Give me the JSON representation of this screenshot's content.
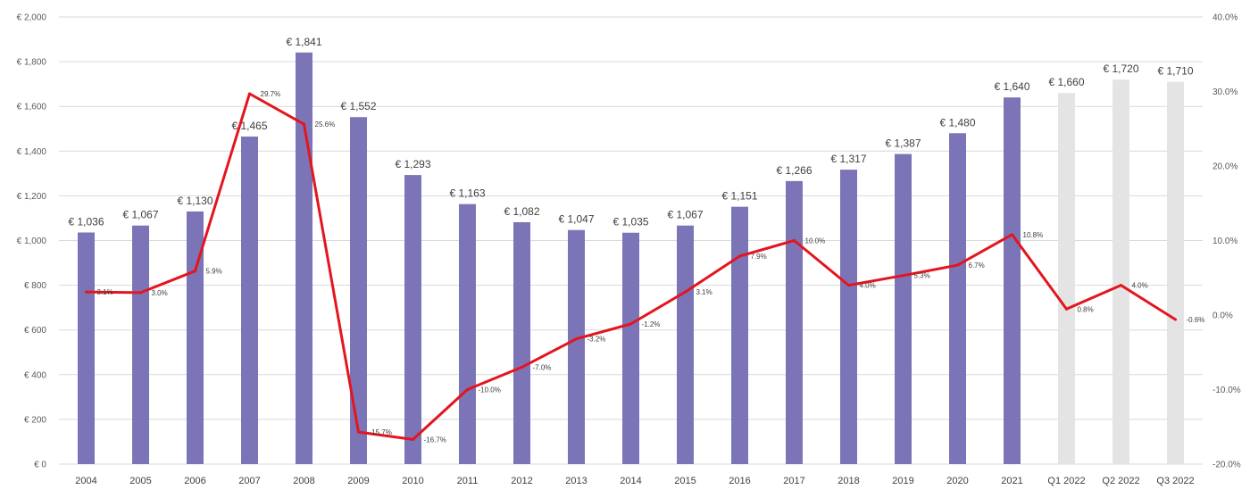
{
  "chart_data": {
    "type": "bar",
    "categories": [
      "2004",
      "2005",
      "2006",
      "2007",
      "2008",
      "2009",
      "2010",
      "2011",
      "2012",
      "2013",
      "2014",
      "2015",
      "2016",
      "2017",
      "2018",
      "2019",
      "2020",
      "2021",
      "Q1 2022",
      "Q2 2022",
      "Q3 2022"
    ],
    "series": [
      {
        "type": "bar",
        "axis": "left",
        "values": [
          1036,
          1067,
          1130,
          1465,
          1841,
          1552,
          1293,
          1163,
          1082,
          1047,
          1035,
          1067,
          1151,
          1266,
          1317,
          1387,
          1480,
          1640,
          1660,
          1720,
          1710
        ],
        "labels": [
          "€ 1,036",
          "€ 1,067",
          "€ 1,130",
          "€ 1,465",
          "€ 1,841",
          "€ 1,552",
          "€ 1,293",
          "€ 1,163",
          "€ 1,082",
          "€ 1,047",
          "€ 1,035",
          "€ 1,067",
          "€ 1,151",
          "€ 1,266",
          "€ 1,317",
          "€ 1,387",
          "€ 1,480",
          "€ 1,640",
          "€ 1,660",
          "€ 1,720",
          "€ 1,710"
        ],
        "colors": [
          "#7b75b8",
          "#7b75b8",
          "#7b75b8",
          "#7b75b8",
          "#7b75b8",
          "#7b75b8",
          "#7b75b8",
          "#7b75b8",
          "#7b75b8",
          "#7b75b8",
          "#7b75b8",
          "#7b75b8",
          "#7b75b8",
          "#7b75b8",
          "#7b75b8",
          "#7b75b8",
          "#7b75b8",
          "#7b75b8",
          "#e4e4e4",
          "#e4e4e4",
          "#e4e4e4"
        ]
      },
      {
        "type": "line",
        "axis": "right",
        "color": "#e3151e",
        "values": [
          3.1,
          3.0,
          5.9,
          29.7,
          25.6,
          -15.7,
          -16.7,
          -10.0,
          -7.0,
          -3.2,
          -1.2,
          3.1,
          7.9,
          10.0,
          4.0,
          5.3,
          6.7,
          10.8,
          0.8,
          4.0,
          -0.6
        ],
        "labels": [
          "3.1%",
          "3.0%",
          "5.9%",
          "29.7%",
          "25.6%",
          "-15.7%",
          "-16.7%",
          "-10.0%",
          "-7.0%",
          "-3.2%",
          "-1.2%",
          "3.1%",
          "7.9%",
          "10.0%",
          "4.0%",
          "5.3%",
          "6.7%",
          "10.8%",
          "0.8%",
          "4.0%",
          "-0.6%"
        ]
      }
    ],
    "left_axis": {
      "ylim": [
        0,
        2000
      ],
      "ticks": [
        0,
        200,
        400,
        600,
        800,
        1000,
        1200,
        1400,
        1600,
        1800,
        2000
      ],
      "tick_labels": [
        "€ 0",
        "€ 200",
        "€ 400",
        "€ 600",
        "€ 800",
        "€ 1,000",
        "€ 1,200",
        "€ 1,400",
        "€ 1,600",
        "€ 1,800",
        "€ 2,000"
      ]
    },
    "right_axis": {
      "ylim": [
        -20,
        40
      ],
      "ticks": [
        -20,
        -10,
        0,
        10,
        20,
        30,
        40
      ],
      "tick_labels": [
        "-20.0%",
        "-10.0%",
        "0.0%",
        "10.0%",
        "20.0%",
        "30.0%",
        "40.0%"
      ]
    },
    "grid": true,
    "legend": "none"
  }
}
